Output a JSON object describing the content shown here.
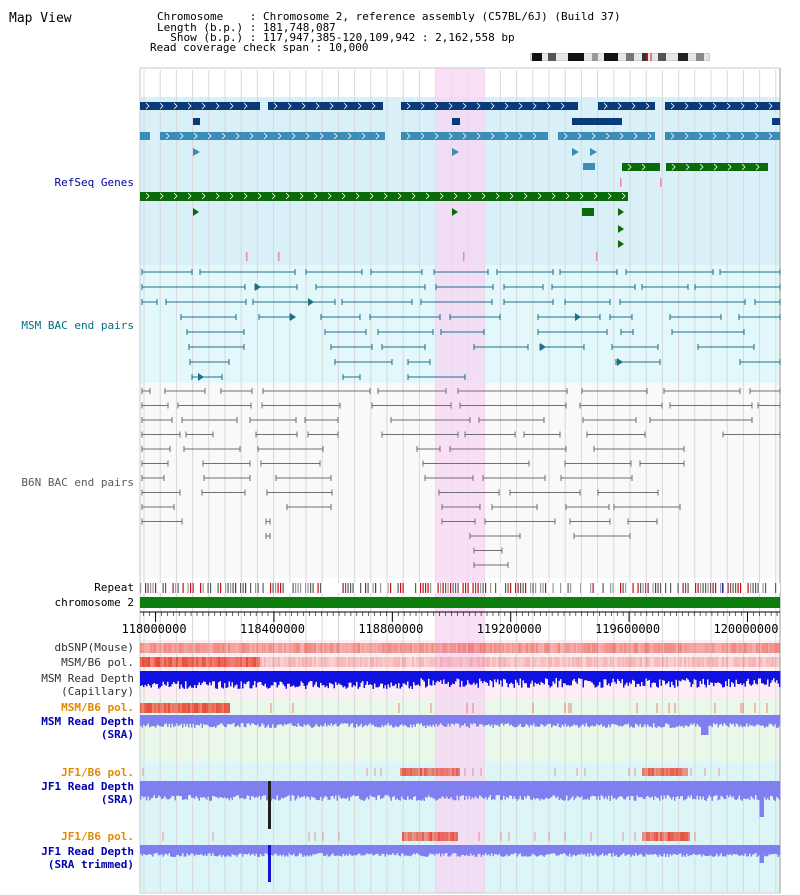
{
  "title": "Map View",
  "header": {
    "line1": "Chromosome    : Chromosome 2, reference assembly (C57BL/6J) (Build 37)",
    "line2": "Length (b.p.) : 181,748,087",
    "line3": "  Show (b.p.) : 117,947,385-120,109,942 : 2,162,558 bp",
    "line4": "Read coverage check span : 10,000"
  },
  "tracks": {
    "refseq": "RefSeq Genes",
    "msm_bac": "MSM BAC end pairs",
    "b6n_bac": "B6N BAC end pairs",
    "repeat": "Repeat",
    "chromosome": "chromosome 2",
    "dbsnp": "dbSNP(Mouse)",
    "msm_b6_pol_1": "MSM/B6 pol.",
    "msm_depth_cap_1": "MSM Read Depth",
    "msm_depth_cap_2": "(Capillary)",
    "msm_b6_pol_2": "MSM/B6 pol.",
    "msm_depth_sra_1": "MSM Read Depth",
    "msm_depth_sra_2": "(SRA)",
    "jf1_b6_pol_1": "JF1/B6 pol.",
    "jf1_depth_sra_1": "JF1 Read Depth",
    "jf1_depth_sra_2": "(SRA)",
    "jf1_b6_pol_2": "JF1/B6 pol.",
    "jf1_depth_trim_1": "JF1 Read Depth",
    "jf1_depth_trim_2": "(SRA trimmed)"
  },
  "axis": {
    "ticks": [
      "118000000",
      "118400000",
      "118800000",
      "119200000",
      "119600000",
      "120000000"
    ],
    "tick_values": [
      118000000,
      118400000,
      118800000,
      119200000,
      119600000,
      120000000
    ],
    "range": [
      117947385,
      120109942
    ]
  },
  "colors": {
    "highlight": "#f7d6f3",
    "refseq_bg": "#d9f0f8",
    "refseq_dark": "#0a3a78",
    "refseq_mid": "#3b8db5",
    "refseq_green": "#0b6b0b",
    "msm_bac_bg": "#e3f8fb",
    "msm_bac_line": "#1d6f8a",
    "b6n_line": "#707070",
    "chrom_green": "#0d7d0d",
    "depth_blue": "#1010e0",
    "depth_light": "#7f7ff0",
    "pol_red": "#e8402a",
    "track_bg_pink": "#fdeef5",
    "track_bg_green": "#eaf8ea",
    "track_bg_cyan": "#dcf6f8"
  }
}
